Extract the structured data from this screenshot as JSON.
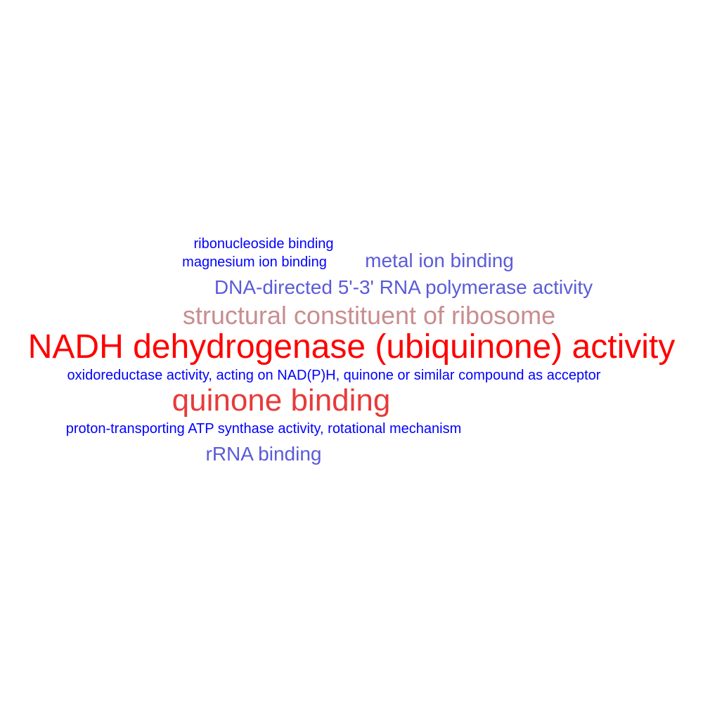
{
  "terms": {
    "ribonucleoside_binding": {
      "text": "ribonucleoside binding",
      "color": "#0000ff"
    },
    "magnesium_ion_binding": {
      "text": "magnesium ion binding",
      "color": "#0000ff"
    },
    "metal_ion_binding": {
      "text": "metal ion binding",
      "color": "#5b5bd9"
    },
    "dna_directed_rna_polymerase": {
      "text": "DNA-directed 5'-3' RNA polymerase activity",
      "color": "#5b5bd9"
    },
    "structural_constituent_of_ribosome": {
      "text": "structural constituent of ribosome",
      "color": "#c98d8f"
    },
    "nadh_dehydrogenase": {
      "text": "NADH dehydrogenase (ubiquinone) activity",
      "color": "#ff0000"
    },
    "oxidoreductase_activity": {
      "text": "oxidoreductase activity, acting on NAD(P)H, quinone or similar compound as acceptor",
      "color": "#0000ff"
    },
    "quinone_binding": {
      "text": "quinone binding",
      "color": "#e83a3a"
    },
    "proton_transporting_atp_synthase": {
      "text": "proton-transporting ATP synthase activity, rotational mechanism",
      "color": "#0000ff"
    },
    "rrna_binding": {
      "text": "rRNA binding",
      "color": "#5b5bd9"
    }
  }
}
